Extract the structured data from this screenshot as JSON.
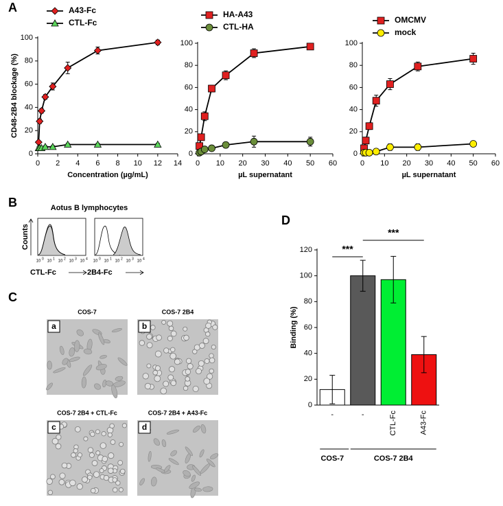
{
  "panel_labels": [
    "A",
    "B",
    "C",
    "D"
  ],
  "chart_data": [
    {
      "type": "line",
      "ylabel": "CD48-2B4 blockage (%)",
      "xlabel": "Concentration (µg/mL)",
      "xlim": [
        0,
        14
      ],
      "xticks": [
        0,
        2,
        4,
        6,
        8,
        10,
        12,
        14
      ],
      "ylim": [
        0,
        100
      ],
      "yticks": [
        0,
        20,
        40,
        60,
        80,
        100
      ],
      "series": [
        {
          "name": "A43-Fc",
          "color": "#e02020",
          "marker": "diamond",
          "x": [
            0.09,
            0.19,
            0.38,
            0.75,
            1.5,
            3,
            6,
            12
          ],
          "values": [
            10,
            28,
            37,
            49,
            58,
            74,
            89,
            96
          ],
          "errors": [
            1,
            2,
            2,
            2,
            3,
            5,
            3,
            2
          ]
        },
        {
          "name": "CTL-Fc",
          "color": "#5cd65c",
          "marker": "triangle",
          "x": [
            0.09,
            0.19,
            0.38,
            0.75,
            1.5,
            3,
            6,
            12
          ],
          "values": [
            5,
            5,
            5,
            6,
            6,
            8,
            8,
            8
          ],
          "errors": [
            1,
            1,
            1,
            1,
            1,
            1,
            1,
            1
          ]
        }
      ]
    },
    {
      "type": "line",
      "xlabel": "µL supernatant",
      "xlim": [
        0,
        60
      ],
      "xticks": [
        0,
        10,
        20,
        30,
        40,
        50,
        60
      ],
      "ylim": [
        0,
        100
      ],
      "yticks": [
        0,
        20,
        40,
        60,
        80,
        100
      ],
      "series": [
        {
          "name": "HA-A43",
          "color": "#e02020",
          "marker": "square",
          "x": [
            0.78,
            1.56,
            3.13,
            6.25,
            12.5,
            25,
            50
          ],
          "values": [
            7,
            15,
            34,
            59,
            71,
            91,
            97
          ],
          "errors": [
            2,
            3,
            4,
            3,
            4,
            4,
            1
          ]
        },
        {
          "name": "CTL-HA",
          "color": "#6b8e3a",
          "marker": "circle",
          "x": [
            0.78,
            1.56,
            3.13,
            6.25,
            12.5,
            25,
            50
          ],
          "values": [
            1,
            2,
            4,
            5,
            8,
            11,
            11
          ],
          "errors": [
            1,
            1,
            2,
            2,
            2,
            5,
            4
          ]
        }
      ]
    },
    {
      "type": "line",
      "xlabel": "µL supernatant",
      "xlim": [
        0,
        60
      ],
      "xticks": [
        0,
        10,
        20,
        30,
        40,
        50,
        60
      ],
      "ylim": [
        0,
        100
      ],
      "yticks": [
        0,
        20,
        40,
        60,
        80,
        100
      ],
      "series": [
        {
          "name": "OMCMV",
          "color": "#e02020",
          "marker": "square",
          "x": [
            0.78,
            1.56,
            3.13,
            6.25,
            12.5,
            25,
            50
          ],
          "values": [
            5,
            12,
            25,
            48,
            63,
            79,
            86
          ],
          "errors": [
            3,
            3,
            3,
            5,
            5,
            4,
            5
          ]
        },
        {
          "name": "mock",
          "color": "#ffee00",
          "marker": "circle",
          "x": [
            0.78,
            1.56,
            3.13,
            6.25,
            12.5,
            25,
            50
          ],
          "values": [
            1,
            1,
            1,
            2,
            6,
            6,
            9
          ],
          "errors": [
            1,
            1,
            1,
            1,
            3,
            3,
            2
          ]
        }
      ]
    },
    {
      "type": "bar",
      "ylabel": "Binding (%)",
      "categories": [
        "-",
        "-",
        "CTL-Fc",
        "A43-Fc"
      ],
      "values": [
        12,
        100,
        97,
        39
      ],
      "errors": [
        11,
        12,
        18,
        14
      ],
      "colors": [
        "#ffffff",
        "#595959",
        "#00ee33",
        "#ee1111"
      ],
      "ylim": [
        0,
        120
      ],
      "yticks": [
        0,
        20,
        40,
        60,
        80,
        100,
        120
      ],
      "groups": [
        "COS-7",
        "COS-7 2B4"
      ],
      "significance": [
        "***",
        "***"
      ]
    }
  ],
  "panel_b": {
    "title": "Aotus B lymphocytes",
    "ylabel": "Counts",
    "xlabels": [
      "CTL-Fc",
      "2B4-Fc"
    ],
    "tick_base": "10",
    "tick_exponents": [
      "0",
      "1",
      "2",
      "3",
      "4"
    ]
  },
  "panel_c": {
    "images": [
      {
        "letter": "a",
        "title": "COS-7"
      },
      {
        "letter": "b",
        "title": "COS-7 2B4"
      },
      {
        "letter": "c",
        "title": "COS-7 2B4 + CTL-Fc"
      },
      {
        "letter": "d",
        "title": "COS-7 2B4 + A43-Fc"
      }
    ]
  }
}
